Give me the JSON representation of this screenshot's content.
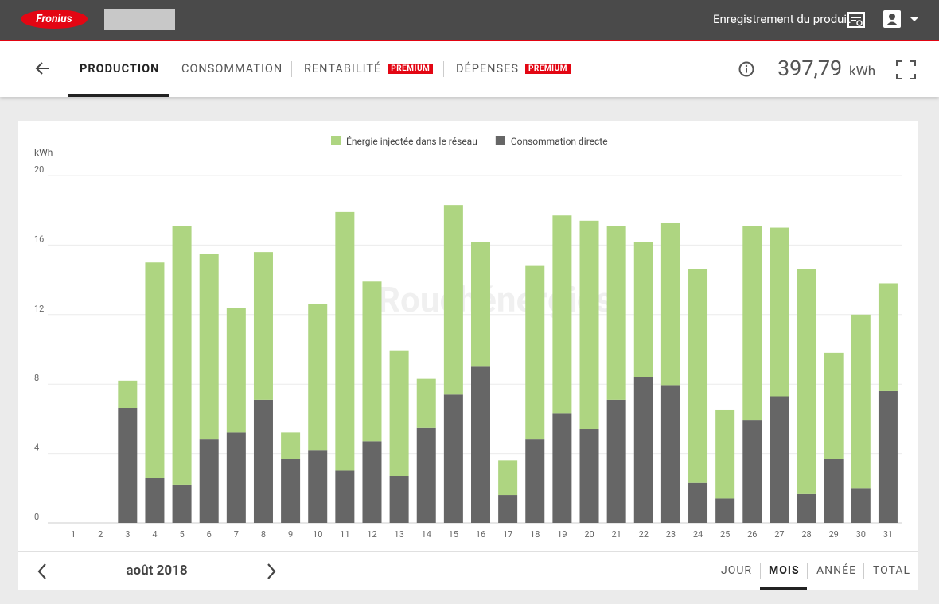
{
  "header": {
    "brand": "Fronius",
    "product_registration": "Enregistrement du produit"
  },
  "tabs": [
    {
      "label": "PRODUCTION"
    },
    {
      "label": "CONSOMMATION"
    },
    {
      "label": "RENTABILITÉ",
      "badge": "PREMIUM"
    },
    {
      "label": "DÉPENSES",
      "badge": "PREMIUM"
    }
  ],
  "total": {
    "value": "397,79",
    "unit": "kWh"
  },
  "chart_data": {
    "type": "stacked_bar",
    "y_label": "kWh",
    "watermark": "Rouchénergies",
    "categories": [
      "1",
      "2",
      "3",
      "4",
      "5",
      "6",
      "7",
      "8",
      "9",
      "10",
      "11",
      "12",
      "13",
      "14",
      "15",
      "16",
      "17",
      "18",
      "19",
      "20",
      "21",
      "22",
      "23",
      "24",
      "25",
      "26",
      "27",
      "28",
      "29",
      "30",
      "31"
    ],
    "series": [
      {
        "name": "Énergie injectée dans le réseau",
        "color": "#aed581",
        "values": [
          0,
          0,
          1.6,
          12.4,
          14.9,
          10.7,
          7.2,
          8.5,
          1.5,
          8.4,
          14.9,
          9.2,
          7.2,
          2.8,
          10.9,
          7.2,
          2.0,
          10.0,
          11.4,
          12.0,
          10.0,
          7.8,
          9.4,
          12.3,
          5.1,
          11.2,
          9.7,
          12.9,
          6.1,
          10.0,
          6.2
        ]
      },
      {
        "name": "Consommation directe",
        "color": "#666666",
        "values": [
          0,
          0,
          6.6,
          2.6,
          2.2,
          4.8,
          5.2,
          7.1,
          3.7,
          4.2,
          3.0,
          4.7,
          2.7,
          5.5,
          7.4,
          9.0,
          1.6,
          4.8,
          6.3,
          5.4,
          7.1,
          8.4,
          7.9,
          2.3,
          1.4,
          5.9,
          7.3,
          1.7,
          3.7,
          2.0,
          7.6
        ]
      }
    ],
    "stack_order": [
      1,
      0
    ],
    "ylim": [
      0,
      20
    ],
    "yticks": [
      0,
      4,
      8,
      12,
      16,
      20
    ],
    "grid": true,
    "legend": "top"
  },
  "footer": {
    "period": "août 2018",
    "ranges": [
      "JOUR",
      "MOIS",
      "ANNÉE",
      "TOTAL"
    ]
  }
}
